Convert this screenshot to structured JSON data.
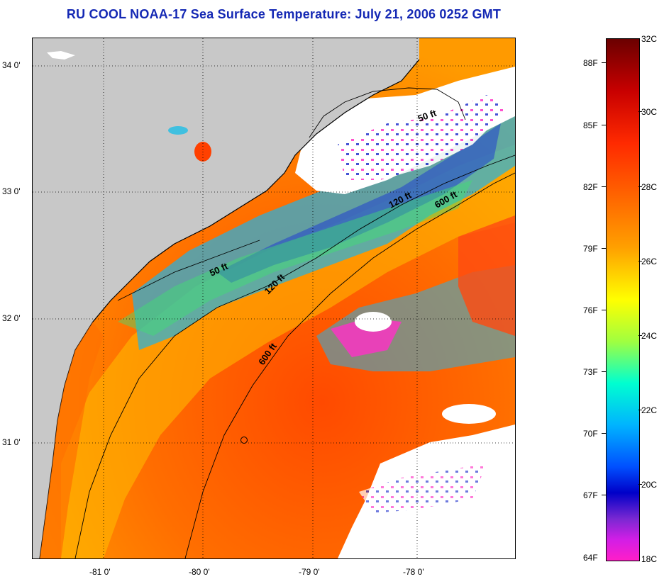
{
  "title": "RU COOL  NOAA-17  Sea Surface Temperature:  July 21, 2006 0252 GMT",
  "lat_labels": [
    "34 0'",
    "33 0'",
    "32 0'",
    "31 0'"
  ],
  "lon_labels": [
    "-81 0'",
    "-80 0'",
    "-79 0'",
    "-78 0'"
  ],
  "contour_labels": [
    "50 ft",
    "120 ft",
    "600 ft",
    "50 ft",
    "120 ft",
    "600 ft"
  ],
  "colorbar": {
    "fahrenheit": [
      "88F",
      "85F",
      "82F",
      "79F",
      "76F",
      "73F",
      "70F",
      "67F",
      "64F"
    ],
    "celsius": [
      "32C",
      "30C",
      "28C",
      "26C",
      "24C",
      "22C",
      "20C",
      "18C"
    ]
  },
  "colors": {
    "land": "#c8c8c8",
    "cloud": "#ffffff",
    "warm": "#ff6a00",
    "title": "#1428b4"
  },
  "icons": [
    "coastline-line",
    "depth-contour-line",
    "buoy-marker-icon"
  ]
}
